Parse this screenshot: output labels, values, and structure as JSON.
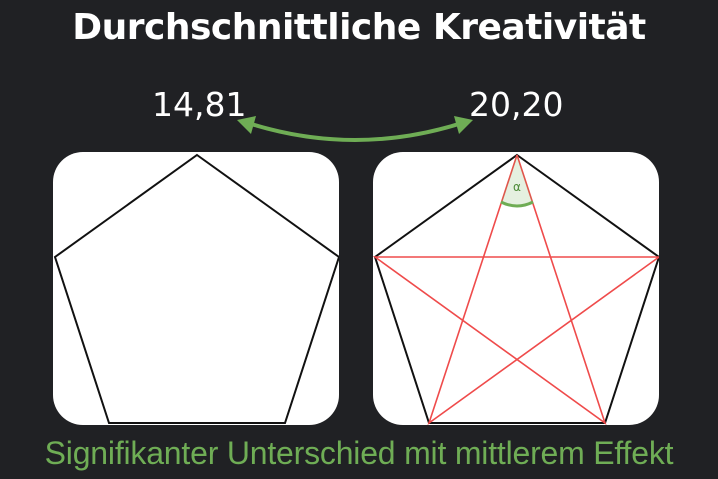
{
  "title": "Durchschnittliche Kreativität",
  "values": {
    "left": "14,81",
    "right": "20,20"
  },
  "angle_label": "α",
  "caption": "Signifikanter Unterschied mit mittlerem Effekt",
  "colors": {
    "background": "#202124",
    "text": "#ffffff",
    "accent_green": "#6fad55",
    "pentagram_red": "#ef4b4b",
    "outline": "#111111"
  }
}
